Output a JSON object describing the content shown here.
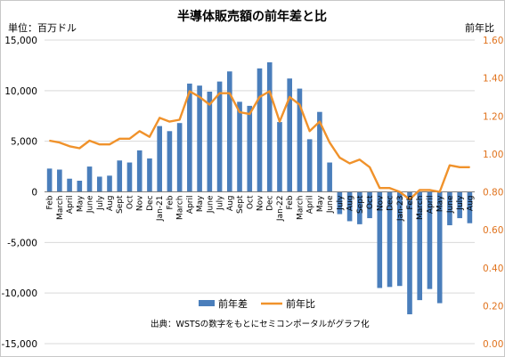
{
  "chart_data": {
    "type": "bar+line",
    "title": "半導体販売額の前年差と比",
    "left_axis_unit": "単位：百万ドル",
    "right_axis_title": "前年比",
    "source_note": "出典：WSTSの数字をもとにセミコンポータルがグラフ化",
    "left_axis": {
      "min": -15000,
      "max": 15000,
      "step": 5000,
      "tick_labels": [
        "-15,000",
        "-10,000",
        "-5,000",
        "0",
        "5,000",
        "10,000",
        "15,000"
      ]
    },
    "right_axis": {
      "min": 0,
      "max": 1.6,
      "step": 0.2,
      "tick_labels": [
        "0.00",
        "0.20",
        "0.40",
        "0.60",
        "0.80",
        "1.00",
        "1.20",
        "1.40",
        "1.60"
      ]
    },
    "categories": [
      "Feb",
      "March",
      "April",
      "May",
      "June",
      "July",
      "Aug",
      "Sept",
      "Oct",
      "Nov",
      "Dec",
      "Jan-21",
      "Feb",
      "March",
      "April",
      "May",
      "June",
      "July",
      "Aug",
      "Sept",
      "Oct",
      "Nov",
      "Dec",
      "Jan-22",
      "Feb",
      "March",
      "April",
      "May",
      "June",
      "July",
      "Aug",
      "Sept",
      "Oct",
      "Nov",
      "Dec",
      "Jan-23",
      "Feb",
      "March",
      "April",
      "May",
      "June",
      "July",
      "Aug"
    ],
    "series": [
      {
        "name": "前年差",
        "type": "bar",
        "axis": "left",
        "values": [
          2300,
          2200,
          1300,
          1100,
          2500,
          1500,
          1600,
          3100,
          2900,
          4100,
          3300,
          6500,
          6000,
          6800,
          10700,
          10500,
          9900,
          10900,
          11900,
          8900,
          8500,
          12200,
          12800,
          6900,
          11200,
          10200,
          5200,
          7900,
          2900,
          -2200,
          -2900,
          -3200,
          -2600,
          -9500,
          -9400,
          -9300,
          -12100,
          -10700,
          -9600,
          -11000,
          -3300,
          -2600,
          -3100
        ]
      },
      {
        "name": "前年比",
        "type": "line",
        "axis": "right",
        "values": [
          1.07,
          1.06,
          1.04,
          1.03,
          1.07,
          1.05,
          1.05,
          1.08,
          1.08,
          1.12,
          1.09,
          1.19,
          1.17,
          1.18,
          1.33,
          1.3,
          1.26,
          1.32,
          1.32,
          1.22,
          1.21,
          1.3,
          1.33,
          1.17,
          1.3,
          1.26,
          1.12,
          1.17,
          1.06,
          0.98,
          0.95,
          0.97,
          0.93,
          0.82,
          0.82,
          0.8,
          0.76,
          0.81,
          0.81,
          0.8,
          0.94,
          0.93,
          0.93
        ]
      }
    ],
    "colors": {
      "bar": "#4a7ebb",
      "line": "#f0922b",
      "right_axis_text": "#e0721c"
    },
    "legend": {
      "position": "bottom-center",
      "items": [
        "前年差",
        "前年比"
      ]
    },
    "grid": true
  }
}
